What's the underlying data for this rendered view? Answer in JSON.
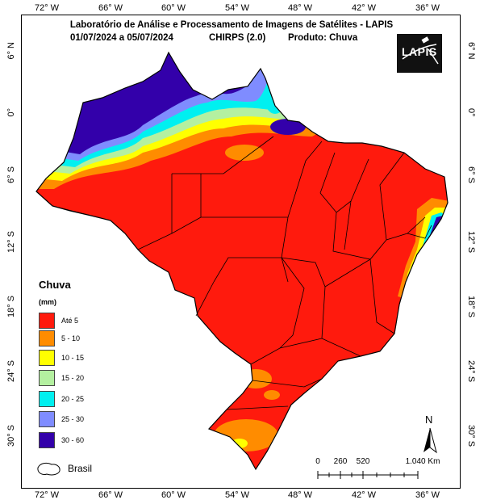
{
  "header": {
    "line1": "Laboratório de Análise e Processamento de Imagens de Satélites - LAPIS",
    "dates": "01/07/2024  a 05/07/2024",
    "model": "CHIRPS (2.0)",
    "product": "Produto: Chuva"
  },
  "logo": {
    "text": "LAPIS"
  },
  "axes": {
    "longitude_labels": [
      "72° W",
      "66° W",
      "60° W",
      "54° W",
      "48° W",
      "42° W",
      "36° W"
    ],
    "latitude_labels_left": [
      "6° N",
      "0°",
      "6° S",
      "12° S",
      "18° S",
      "24° S",
      "30° S"
    ],
    "latitude_labels_right": [
      "6° N",
      "0°",
      "6° S",
      "12° S",
      "18° S",
      "24° S",
      "30° S"
    ]
  },
  "legend": {
    "title": "Chuva",
    "unit": "(mm)",
    "classes": [
      {
        "label": "Até 5",
        "color": "#ff1a0d"
      },
      {
        "label": "5 - 10",
        "color": "#ff8c00"
      },
      {
        "label": "10 - 15",
        "color": "#ffff00"
      },
      {
        "label": "15 - 20",
        "color": "#b4f0a0"
      },
      {
        "label": "20 - 25",
        "color": "#00f0f0"
      },
      {
        "label": "25 - 30",
        "color": "#7f8cff"
      },
      {
        "label": "30 - 60",
        "color": "#3300aa"
      }
    ]
  },
  "north_arrow": {
    "label": "N"
  },
  "scale_bar": {
    "labels": [
      "0",
      "260",
      "520",
      "1.040 Km"
    ]
  },
  "key_label": "Brasil"
}
